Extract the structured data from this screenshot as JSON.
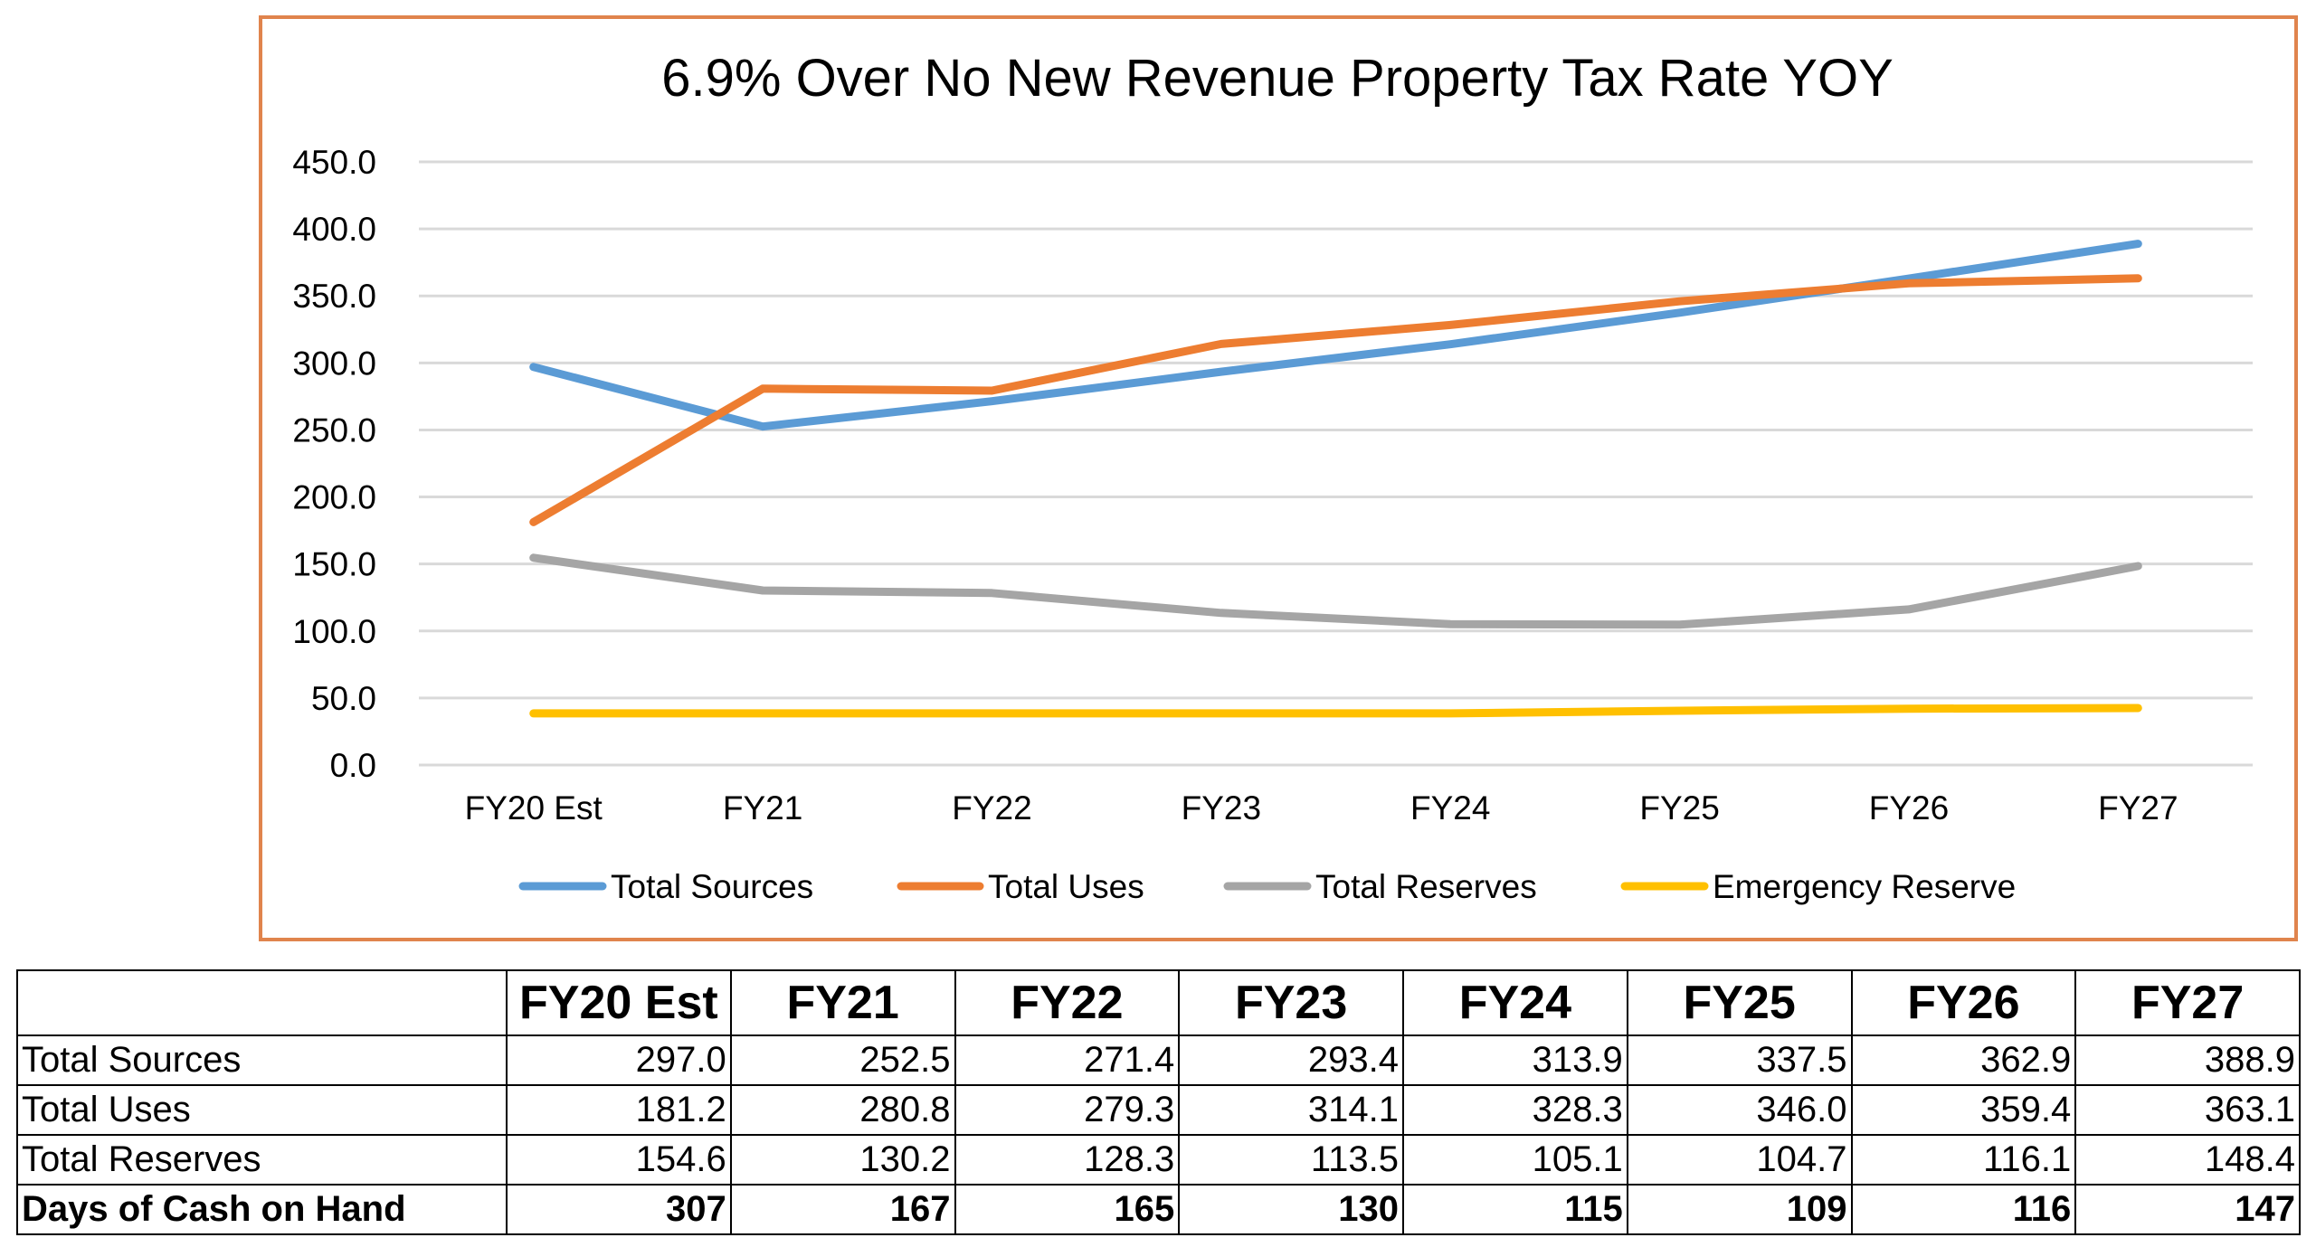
{
  "chart_data": {
    "type": "line",
    "title": "6.9% Over No New Revenue Property Tax Rate YOY",
    "categories": [
      "FY20 Est",
      "FY21",
      "FY22",
      "FY23",
      "FY24",
      "FY25",
      "FY26",
      "FY27"
    ],
    "yticks": [
      "0.0",
      "50.0",
      "100.0",
      "150.0",
      "200.0",
      "250.0",
      "300.0",
      "350.0",
      "400.0",
      "450.0"
    ],
    "ylim": [
      0,
      450
    ],
    "grid": true,
    "legend_position": "bottom",
    "series": [
      {
        "name": "Total Sources",
        "color": "#5B9BD5",
        "values": [
          297.0,
          252.5,
          271.4,
          293.4,
          313.9,
          337.5,
          362.9,
          388.9
        ]
      },
      {
        "name": "Total Uses",
        "color": "#ED7D31",
        "values": [
          181.2,
          280.8,
          279.3,
          314.1,
          328.3,
          346.0,
          359.4,
          363.1
        ]
      },
      {
        "name": "Total Reserves",
        "color": "#A5A5A5",
        "values": [
          154.6,
          130.2,
          128.3,
          113.5,
          105.1,
          104.7,
          116.1,
          148.4
        ]
      },
      {
        "name": "Emergency Reserve",
        "color": "#FFC000",
        "values": [
          38.5,
          38.5,
          38.5,
          38.5,
          38.5,
          40.5,
          42.0,
          42.5
        ]
      }
    ]
  },
  "table": {
    "header": [
      "",
      "FY20 Est",
      "FY21",
      "FY22",
      "FY23",
      "FY24",
      "FY25",
      "FY26",
      "FY27"
    ],
    "rows": [
      {
        "label": "Total Sources",
        "bold": false,
        "values": [
          "297.0",
          "252.5",
          "271.4",
          "293.4",
          "313.9",
          "337.5",
          "362.9",
          "388.9"
        ]
      },
      {
        "label": "Total Uses",
        "bold": false,
        "values": [
          "181.2",
          "280.8",
          "279.3",
          "314.1",
          "328.3",
          "346.0",
          "359.4",
          "363.1"
        ]
      },
      {
        "label": "Total Reserves",
        "bold": false,
        "values": [
          "154.6",
          "130.2",
          "128.3",
          "113.5",
          "105.1",
          "104.7",
          "116.1",
          "148.4"
        ]
      },
      {
        "label": "Days of Cash on Hand",
        "bold": true,
        "values": [
          "307",
          "167",
          "165",
          "130",
          "115",
          "109",
          "116",
          "147"
        ]
      }
    ]
  }
}
